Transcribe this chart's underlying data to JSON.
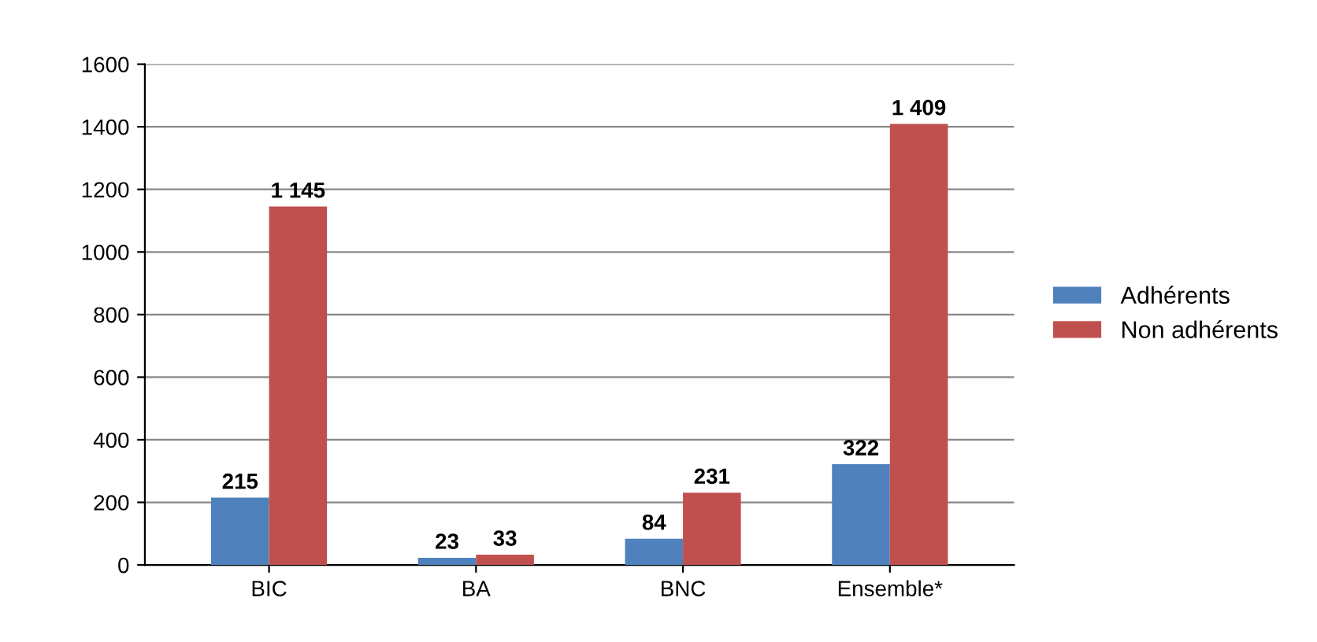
{
  "chart_data": {
    "type": "bar",
    "categories": [
      "BIC",
      "BA",
      "BNC",
      "Ensemble*"
    ],
    "series": [
      {
        "name": "Adhérents",
        "color": "#4f81bd",
        "values": [
          215,
          23,
          84,
          322
        ],
        "value_labels": [
          "215",
          "23",
          "84",
          "322"
        ]
      },
      {
        "name": "Non adhérents",
        "color": "#c0504d",
        "values": [
          1145,
          33,
          231,
          1409
        ],
        "value_labels": [
          "1 145",
          "33",
          "231",
          "1 409"
        ]
      }
    ],
    "ylim": [
      0,
      1600
    ],
    "yticks": [
      0,
      200,
      400,
      600,
      800,
      1000,
      1200,
      1400,
      1600
    ],
    "grid": "y",
    "legend": "right"
  }
}
